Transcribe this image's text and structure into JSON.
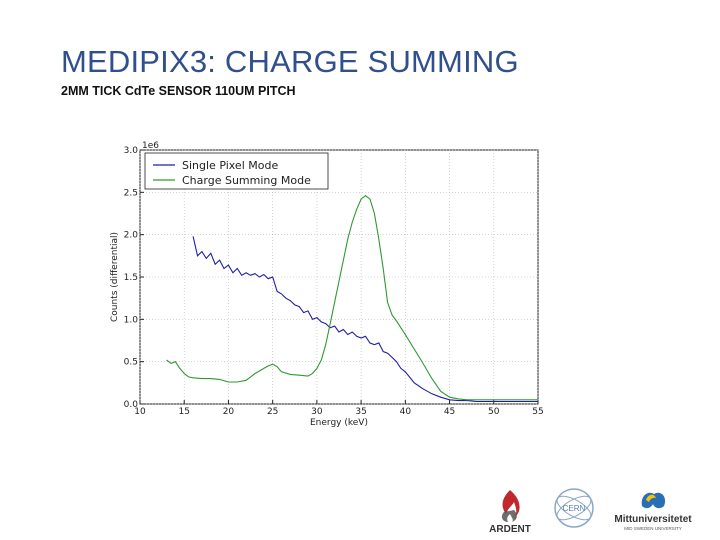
{
  "slide": {
    "title": "MEDIPIX3: CHARGE SUMMING",
    "subtitle": "2MM TICK CdTe SENSOR 110UM PITCH"
  },
  "logos": {
    "ardent": "ARDENT",
    "cern": "CERN",
    "miun_name": "Mittuniversitetet",
    "miun_tagline": "MID SWEDEN UNIVERSITY"
  },
  "chart_data": {
    "type": "line",
    "xlabel": "Energy (keV)",
    "ylabel": "Counts (differential)",
    "y_multiplier": "1e6",
    "xlim": [
      10,
      55
    ],
    "ylim": [
      0.0,
      3.0
    ],
    "xticks": [
      10,
      15,
      20,
      25,
      30,
      35,
      40,
      45,
      50,
      55
    ],
    "yticks": [
      0.0,
      0.5,
      1.0,
      1.5,
      2.0,
      2.5,
      3.0
    ],
    "grid": true,
    "legend": "top-left",
    "series": [
      {
        "name": "Single Pixel Mode",
        "color": "#1f1fa8",
        "x": [
          16,
          16.5,
          17,
          17.5,
          18,
          18.5,
          19,
          19.5,
          20,
          20.5,
          21,
          21.5,
          22,
          22.5,
          23,
          23.5,
          24,
          24.5,
          25,
          25.5,
          26,
          26.5,
          27,
          27.5,
          28,
          28.5,
          29,
          29.5,
          30,
          30.5,
          31,
          31.5,
          32,
          32.5,
          33,
          33.5,
          34,
          34.5,
          35,
          35.5,
          36,
          36.5,
          37,
          37.5,
          38,
          38.5,
          39,
          39.5,
          40,
          41,
          42,
          43,
          44,
          45,
          46,
          47,
          48,
          49,
          50,
          51,
          52,
          53,
          54,
          55
        ],
        "y": [
          1.98,
          1.75,
          1.8,
          1.72,
          1.78,
          1.65,
          1.7,
          1.6,
          1.64,
          1.55,
          1.6,
          1.52,
          1.55,
          1.52,
          1.54,
          1.5,
          1.53,
          1.48,
          1.5,
          1.33,
          1.3,
          1.25,
          1.22,
          1.17,
          1.15,
          1.08,
          1.1,
          1.0,
          1.02,
          0.97,
          0.95,
          0.9,
          0.92,
          0.85,
          0.88,
          0.82,
          0.85,
          0.8,
          0.78,
          0.8,
          0.72,
          0.7,
          0.72,
          0.62,
          0.6,
          0.55,
          0.5,
          0.42,
          0.38,
          0.25,
          0.18,
          0.12,
          0.08,
          0.05,
          0.04,
          0.04,
          0.03,
          0.03,
          0.03,
          0.03,
          0.03,
          0.03,
          0.03,
          0.03
        ]
      },
      {
        "name": "Charge Summing Mode",
        "color": "#2e9a2e",
        "x": [
          13,
          13.5,
          14,
          14.5,
          15,
          15.5,
          16,
          17,
          18,
          19,
          20,
          21,
          22,
          22.5,
          23,
          23.5,
          24,
          24.5,
          25,
          25.5,
          26,
          27,
          28,
          29,
          29.5,
          30,
          30.5,
          31,
          31.5,
          32,
          32.5,
          33,
          33.5,
          34,
          34.5,
          35,
          35.5,
          36,
          36.5,
          37,
          37.5,
          38,
          38.5,
          39,
          39.5,
          40,
          41,
          42,
          43,
          44,
          45,
          46,
          47,
          48,
          49,
          50,
          51,
          52,
          53,
          54,
          55
        ],
        "y": [
          0.52,
          0.48,
          0.5,
          0.42,
          0.36,
          0.32,
          0.31,
          0.3,
          0.3,
          0.29,
          0.26,
          0.26,
          0.28,
          0.32,
          0.36,
          0.39,
          0.42,
          0.45,
          0.47,
          0.44,
          0.38,
          0.35,
          0.34,
          0.33,
          0.36,
          0.42,
          0.52,
          0.7,
          0.95,
          1.2,
          1.45,
          1.7,
          1.95,
          2.15,
          2.3,
          2.42,
          2.46,
          2.42,
          2.25,
          1.95,
          1.6,
          1.2,
          1.05,
          0.98,
          0.9,
          0.82,
          0.65,
          0.48,
          0.3,
          0.15,
          0.08,
          0.06,
          0.05,
          0.05,
          0.05,
          0.05,
          0.05,
          0.05,
          0.05,
          0.05,
          0.05
        ]
      }
    ]
  }
}
